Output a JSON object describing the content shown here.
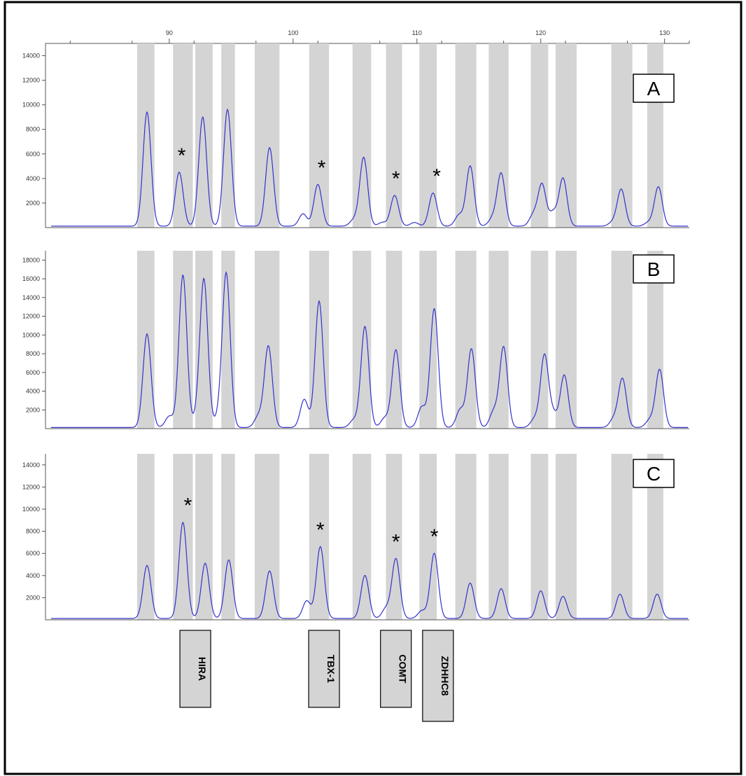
{
  "chart_data": {
    "type": "line",
    "x_axis": {
      "range": [
        80,
        132
      ],
      "ticks": [
        90,
        100,
        110,
        120,
        130
      ],
      "tick_labels": [
        "90",
        "100",
        "110",
        "120",
        "130"
      ]
    },
    "gray_bins": [
      [
        87.4,
        88.8
      ],
      [
        90.3,
        91.9
      ],
      [
        92.1,
        93.5
      ],
      [
        94.2,
        95.3
      ],
      [
        96.9,
        98.9
      ],
      [
        101.3,
        102.9
      ],
      [
        104.8,
        106.3
      ],
      [
        107.5,
        108.8
      ],
      [
        110.2,
        111.6
      ],
      [
        113.1,
        114.8
      ],
      [
        115.8,
        117.4
      ],
      [
        119.2,
        120.6
      ],
      [
        121.2,
        122.9
      ],
      [
        125.7,
        127.4
      ],
      [
        128.6,
        129.9
      ]
    ],
    "panels": [
      {
        "label": "A",
        "ylim": [
          0,
          15000
        ],
        "yticks": [
          2000,
          4000,
          6000,
          8000,
          10000,
          12000,
          14000
        ],
        "ytick_labels": [
          "2000",
          "4000",
          "6000",
          "8000",
          "10000",
          "12000",
          "14000"
        ],
        "peaks": [
          {
            "x": 88.2,
            "y": 9300
          },
          {
            "x": 90.8,
            "y": 4400
          },
          {
            "x": 92.7,
            "y": 8900
          },
          {
            "x": 94.7,
            "y": 9500
          },
          {
            "x": 98.1,
            "y": 6400
          },
          {
            "x": 100.8,
            "y": 1000
          },
          {
            "x": 102.0,
            "y": 3400
          },
          {
            "x": 104.9,
            "y": 500
          },
          {
            "x": 105.7,
            "y": 5600
          },
          {
            "x": 107.2,
            "y": 300
          },
          {
            "x": 108.2,
            "y": 2500
          },
          {
            "x": 109.8,
            "y": 300
          },
          {
            "x": 111.3,
            "y": 2700
          },
          {
            "x": 113.4,
            "y": 900
          },
          {
            "x": 114.3,
            "y": 4900
          },
          {
            "x": 116.1,
            "y": 600
          },
          {
            "x": 116.8,
            "y": 4300
          },
          {
            "x": 119.4,
            "y": 900
          },
          {
            "x": 120.1,
            "y": 3400
          },
          {
            "x": 121.0,
            "y": 1100
          },
          {
            "x": 121.8,
            "y": 3900
          },
          {
            "x": 125.8,
            "y": 300
          },
          {
            "x": 126.5,
            "y": 3000
          },
          {
            "x": 128.7,
            "y": 300
          },
          {
            "x": 129.5,
            "y": 3200
          }
        ],
        "asterisks_x": [
          91.0,
          102.3,
          108.3,
          111.6
        ]
      },
      {
        "label": "B",
        "ylim": [
          0,
          19000
        ],
        "yticks": [
          2000,
          4000,
          6000,
          8000,
          10000,
          12000,
          14000,
          16000,
          18000
        ],
        "ytick_labels": [
          "2000",
          "4000",
          "6000",
          "8000",
          "10000",
          "12000",
          "14000",
          "16000",
          "18000"
        ],
        "peaks": [
          {
            "x": 88.2,
            "y": 10000
          },
          {
            "x": 90.0,
            "y": 1200
          },
          {
            "x": 91.1,
            "y": 16300
          },
          {
            "x": 92.3,
            "y": 1100
          },
          {
            "x": 92.8,
            "y": 15600
          },
          {
            "x": 94.0,
            "y": 1000
          },
          {
            "x": 94.6,
            "y": 16400
          },
          {
            "x": 97.2,
            "y": 1200
          },
          {
            "x": 98.0,
            "y": 8700
          },
          {
            "x": 100.9,
            "y": 3000
          },
          {
            "x": 102.1,
            "y": 13500
          },
          {
            "x": 104.9,
            "y": 800
          },
          {
            "x": 105.8,
            "y": 10800
          },
          {
            "x": 107.4,
            "y": 1000
          },
          {
            "x": 108.3,
            "y": 8300
          },
          {
            "x": 110.4,
            "y": 2200
          },
          {
            "x": 111.4,
            "y": 12700
          },
          {
            "x": 113.5,
            "y": 1900
          },
          {
            "x": 114.4,
            "y": 8400
          },
          {
            "x": 116.2,
            "y": 1700
          },
          {
            "x": 117.0,
            "y": 8600
          },
          {
            "x": 119.5,
            "y": 900
          },
          {
            "x": 120.3,
            "y": 7700
          },
          {
            "x": 121.0,
            "y": 1400
          },
          {
            "x": 121.9,
            "y": 5600
          },
          {
            "x": 125.9,
            "y": 900
          },
          {
            "x": 126.6,
            "y": 5200
          },
          {
            "x": 128.8,
            "y": 800
          },
          {
            "x": 129.6,
            "y": 6200
          }
        ],
        "asterisks_x": []
      },
      {
        "label": "C",
        "ylim": [
          0,
          15000
        ],
        "yticks": [
          2000,
          4000,
          6000,
          8000,
          10000,
          12000,
          14000
        ],
        "ytick_labels": [
          "2000",
          "4000",
          "6000",
          "8000",
          "10000",
          "12000",
          "14000"
        ],
        "peaks": [
          {
            "x": 88.2,
            "y": 4800
          },
          {
            "x": 91.1,
            "y": 8700
          },
          {
            "x": 92.9,
            "y": 5000
          },
          {
            "x": 94.8,
            "y": 5300
          },
          {
            "x": 98.1,
            "y": 4300
          },
          {
            "x": 101.1,
            "y": 1600
          },
          {
            "x": 102.2,
            "y": 6500
          },
          {
            "x": 105.8,
            "y": 3900
          },
          {
            "x": 107.5,
            "y": 900
          },
          {
            "x": 108.3,
            "y": 5400
          },
          {
            "x": 110.4,
            "y": 700
          },
          {
            "x": 111.4,
            "y": 5900
          },
          {
            "x": 114.3,
            "y": 3200
          },
          {
            "x": 116.8,
            "y": 2700
          },
          {
            "x": 120.0,
            "y": 2500
          },
          {
            "x": 121.8,
            "y": 2000
          },
          {
            "x": 126.4,
            "y": 2200
          },
          {
            "x": 129.4,
            "y": 2200
          }
        ],
        "asterisks_x": [
          91.5,
          102.2,
          108.3,
          111.4
        ]
      }
    ],
    "gene_labels": [
      {
        "name": "HIRA",
        "x": 92.1
      },
      {
        "name": "TBX-1",
        "x": 102.5
      },
      {
        "name": "COMT",
        "x": 108.3
      },
      {
        "name": "ZDHHC8",
        "x": 111.7
      }
    ]
  },
  "colors": {
    "trace": "#3333cc",
    "bin": "#d4d4d4",
    "axis": "#555555",
    "frame": "#000000"
  }
}
